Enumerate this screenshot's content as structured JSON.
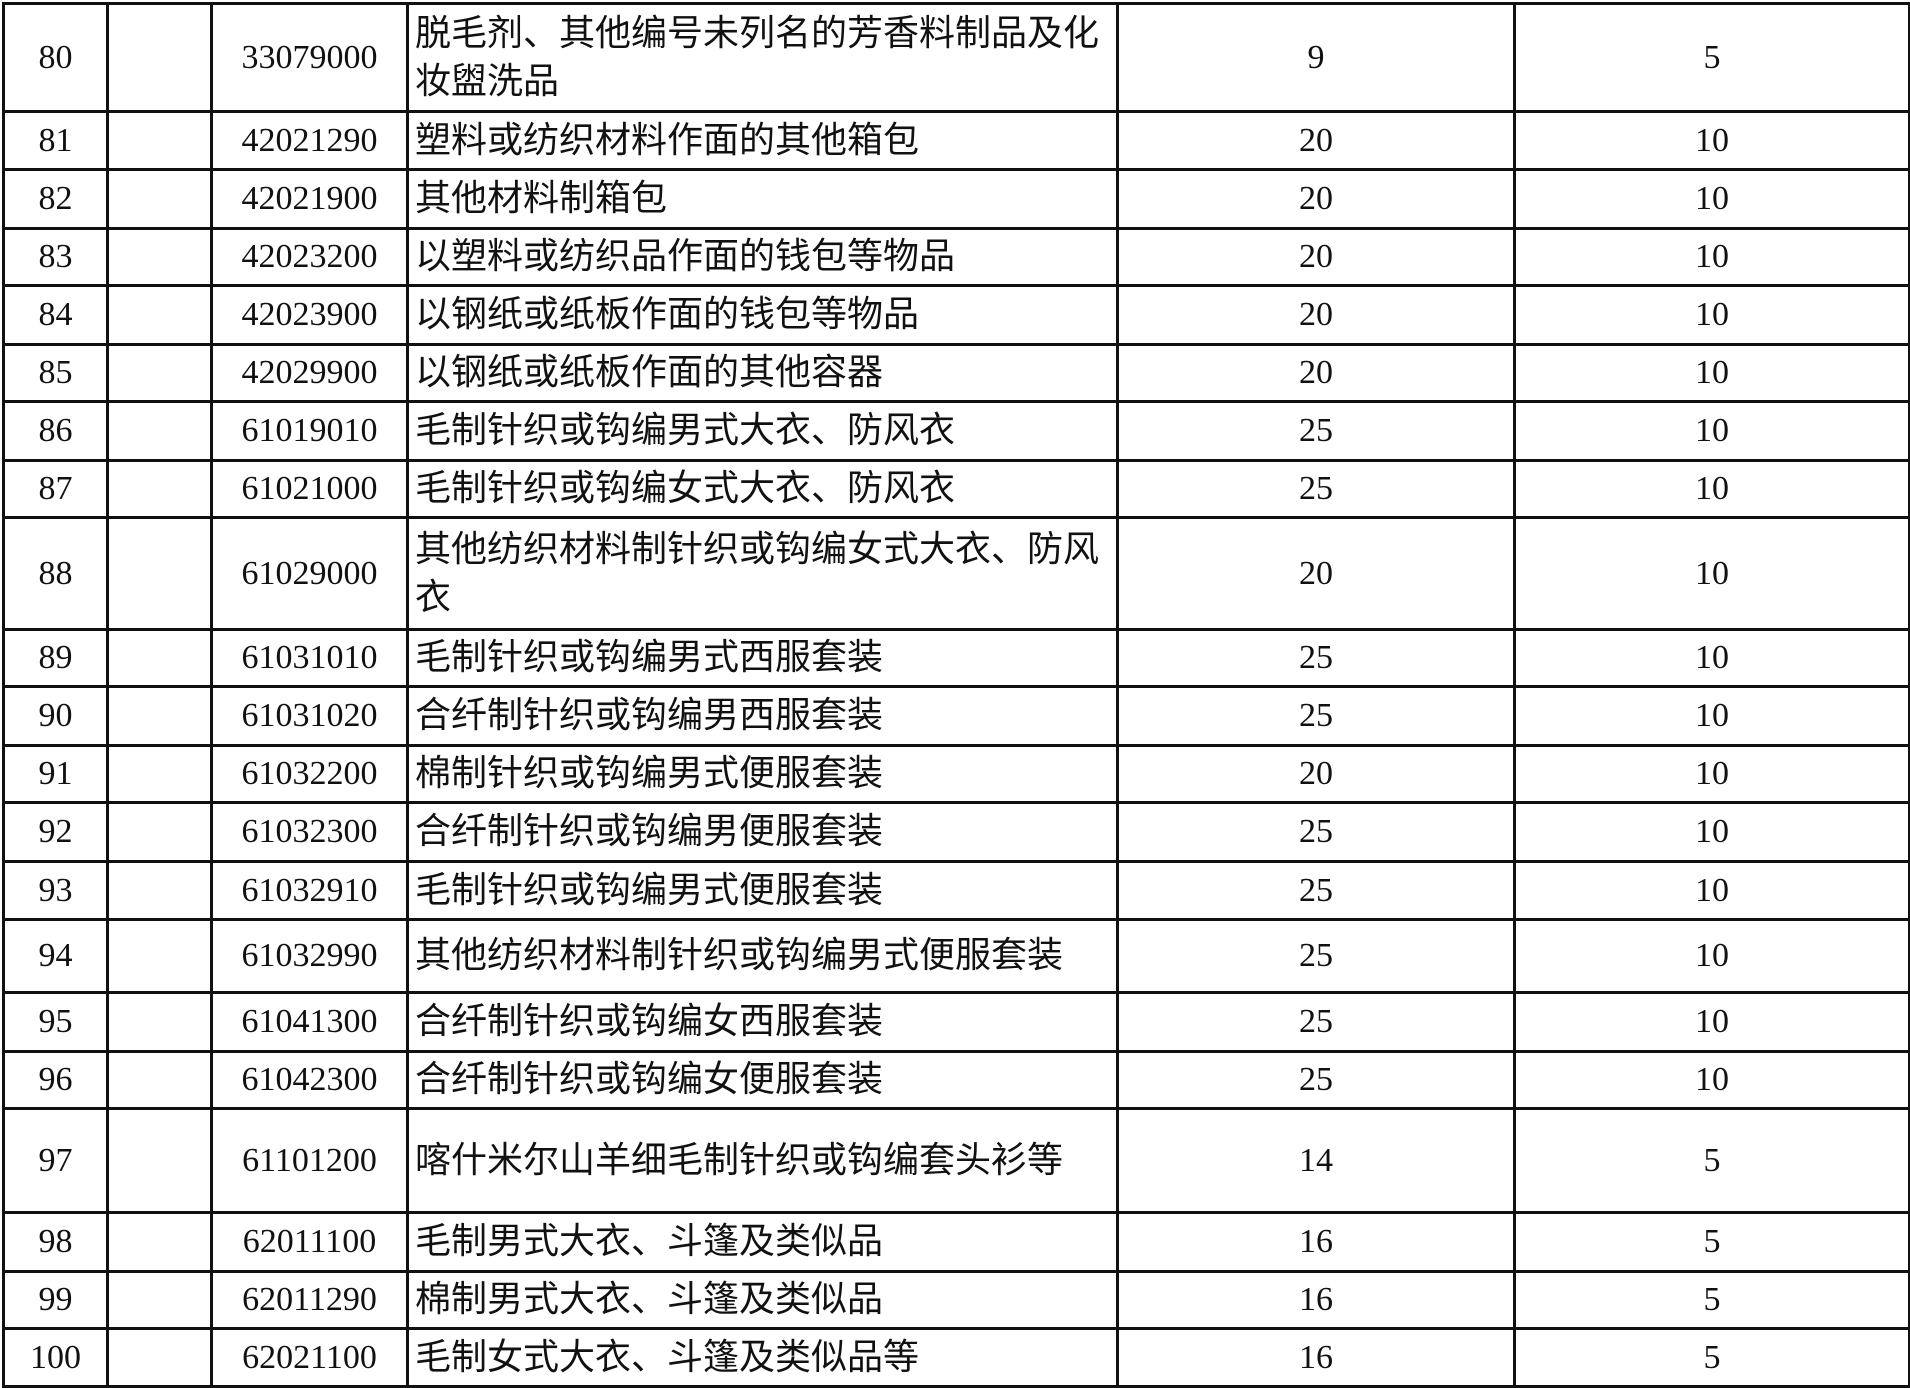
{
  "rows": [
    {
      "no": "80",
      "col2": "",
      "code": "33079000",
      "desc": "脱毛剂、其他编号未列名的芳香料制品及化妆盥洗品",
      "a": "9",
      "b": "5"
    },
    {
      "no": "81",
      "col2": "",
      "code": "42021290",
      "desc": "塑料或纺织材料作面的其他箱包",
      "a": "20",
      "b": "10"
    },
    {
      "no": "82",
      "col2": "",
      "code": "42021900",
      "desc": "其他材料制箱包",
      "a": "20",
      "b": "10"
    },
    {
      "no": "83",
      "col2": "",
      "code": "42023200",
      "desc": "以塑料或纺织品作面的钱包等物品",
      "a": "20",
      "b": "10"
    },
    {
      "no": "84",
      "col2": "",
      "code": "42023900",
      "desc": "以钢纸或纸板作面的钱包等物品",
      "a": "20",
      "b": "10"
    },
    {
      "no": "85",
      "col2": "",
      "code": "42029900",
      "desc": "以钢纸或纸板作面的其他容器",
      "a": "20",
      "b": "10"
    },
    {
      "no": "86",
      "col2": "",
      "code": "61019010",
      "desc": "毛制针织或钩编男式大衣、防风衣",
      "a": "25",
      "b": "10"
    },
    {
      "no": "87",
      "col2": "",
      "code": "61021000",
      "desc": "毛制针织或钩编女式大衣、防风衣",
      "a": "25",
      "b": "10"
    },
    {
      "no": "88",
      "col2": "",
      "code": "61029000",
      "desc": "其他纺织材料制针织或钩编女式大衣、防风衣",
      "a": "20",
      "b": "10"
    },
    {
      "no": "89",
      "col2": "",
      "code": "61031010",
      "desc": "毛制针织或钩编男式西服套装",
      "a": "25",
      "b": "10"
    },
    {
      "no": "90",
      "col2": "",
      "code": "61031020",
      "desc": "合纤制针织或钩编男西服套装",
      "a": "25",
      "b": "10"
    },
    {
      "no": "91",
      "col2": "",
      "code": "61032200",
      "desc": "棉制针织或钩编男式便服套装",
      "a": "20",
      "b": "10"
    },
    {
      "no": "92",
      "col2": "",
      "code": "61032300",
      "desc": "合纤制针织或钩编男便服套装",
      "a": "25",
      "b": "10"
    },
    {
      "no": "93",
      "col2": "",
      "code": "61032910",
      "desc": "毛制针织或钩编男式便服套装",
      "a": "25",
      "b": "10"
    },
    {
      "no": "94",
      "col2": "",
      "code": "61032990",
      "desc": "其他纺织材料制针织或钩编男式便服套装",
      "a": "25",
      "b": "10"
    },
    {
      "no": "95",
      "col2": "",
      "code": "61041300",
      "desc": "合纤制针织或钩编女西服套装",
      "a": "25",
      "b": "10"
    },
    {
      "no": "96",
      "col2": "",
      "code": "61042300",
      "desc": "合纤制针织或钩编女便服套装",
      "a": "25",
      "b": "10"
    },
    {
      "no": "97",
      "col2": "",
      "code": "61101200",
      "desc": "喀什米尔山羊细毛制针织或钩编套头衫等",
      "a": "14",
      "b": "5"
    },
    {
      "no": "98",
      "col2": "",
      "code": "62011100",
      "desc": "毛制男式大衣、斗篷及类似品",
      "a": "16",
      "b": "5"
    },
    {
      "no": "99",
      "col2": "",
      "code": "62011290",
      "desc": "棉制男式大衣、斗篷及类似品",
      "a": "16",
      "b": "5"
    },
    {
      "no": "100",
      "col2": "",
      "code": "62021100",
      "desc": "毛制女式大衣、斗篷及类似品等",
      "a": "16",
      "b": "5"
    }
  ]
}
